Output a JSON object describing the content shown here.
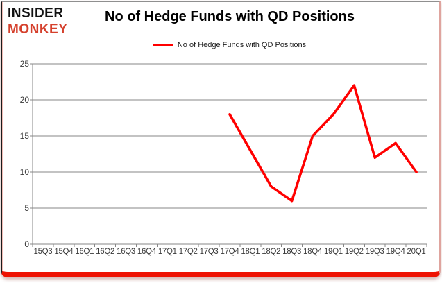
{
  "logo": {
    "line1": "INSIDER",
    "line2": "MONKEY"
  },
  "chart": {
    "title": "No of Hedge Funds with QD Positions",
    "legend_label": "No of Hedge Funds with QD Positions"
  },
  "chart_data": {
    "type": "line",
    "title": "No of Hedge Funds with QD Positions",
    "categories": [
      "15Q3",
      "15Q4",
      "16Q1",
      "16Q2",
      "16Q3",
      "16Q4",
      "17Q1",
      "17Q2",
      "17Q3",
      "17Q4",
      "18Q1",
      "18Q2",
      "18Q3",
      "18Q4",
      "19Q1",
      "19Q2",
      "19Q3",
      "19Q4",
      "20Q1"
    ],
    "series": [
      {
        "name": "No of Hedge Funds with QD Positions",
        "values": [
          null,
          null,
          null,
          null,
          null,
          null,
          null,
          null,
          null,
          18,
          13,
          8,
          6,
          15,
          18,
          22,
          12,
          14,
          10
        ],
        "color": "#ff0000"
      }
    ],
    "ylim": [
      0,
      25
    ],
    "yticks": [
      0,
      5,
      10,
      15,
      20,
      25
    ],
    "grid": true,
    "legend_position": "top"
  },
  "colors": {
    "series_red": "#ff0000",
    "logo_red": "#d5402c",
    "gridline": "#878787",
    "axis_text": "#3b3b3b",
    "bottom_bar_red": "#ee1202",
    "frame_top_gray": "#8f8f8f",
    "frame_left_black": "#1c1c1c",
    "frame_pink": "#f2bdb7"
  }
}
